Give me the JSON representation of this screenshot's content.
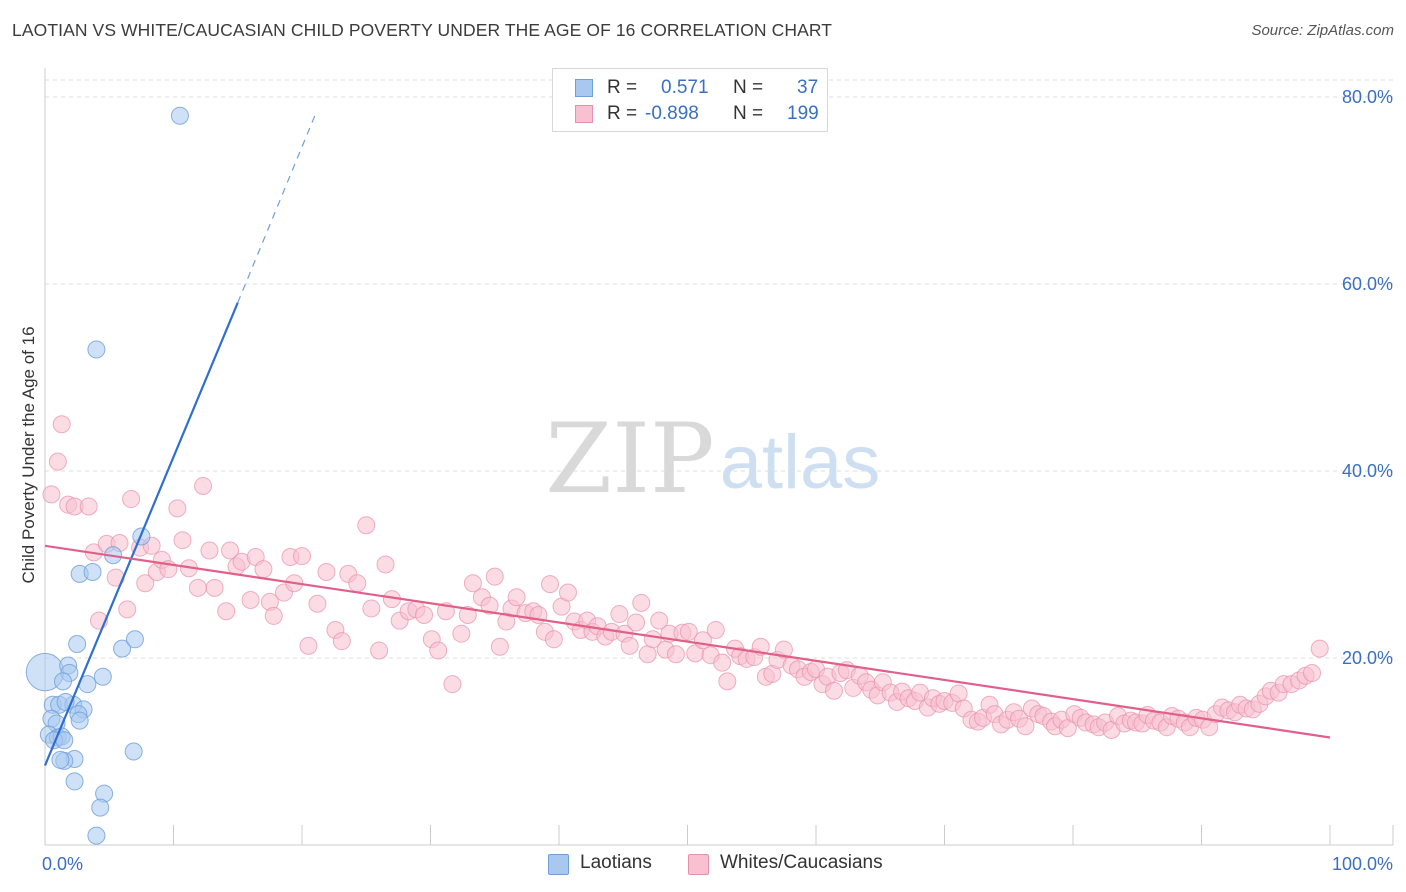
{
  "title": "LAOTIAN VS WHITE/CAUCASIAN CHILD POVERTY UNDER THE AGE OF 16 CORRELATION CHART",
  "source": "Source: ZipAtlas.com",
  "watermark": {
    "zip": "ZIP",
    "atlas": "atlas"
  },
  "legend": {
    "rows": [
      {
        "r_label": "R =",
        "r_value": "0.571",
        "n_label": "N =",
        "n_value": "37",
        "color": "#a8c8f0",
        "border": "#6f9fd8"
      },
      {
        "r_label": "R =",
        "r_value": "-0.898",
        "n_label": "N =",
        "n_value": "199",
        "color": "#f8c0d0",
        "border": "#e890aa"
      }
    ]
  },
  "bottom_legend": [
    {
      "label": "Laotians",
      "color": "#a8c8f0",
      "border": "#6f9fd8"
    },
    {
      "label": "Whites/Caucasians",
      "color": "#f8c0d0",
      "border": "#e890aa"
    }
  ],
  "chart_data": {
    "type": "scatter",
    "title": "LAOTIAN VS WHITE/CAUCASIAN CHILD POVERTY UNDER THE AGE OF 16 CORRELATION CHART",
    "xlabel": "",
    "ylabel": "Child Poverty Under the Age of 16",
    "xlim": [
      0,
      100
    ],
    "ylim": [
      0,
      80
    ],
    "x_tick_labels": [
      "0.0%",
      "100.0%"
    ],
    "y_tick_labels": [
      "20.0%",
      "40.0%",
      "60.0%",
      "80.0%"
    ],
    "y_ticks": [
      20,
      40,
      60,
      80
    ],
    "grid": "horizontal dashed",
    "series": [
      {
        "name": "Laotians",
        "color": "#6f9fd8",
        "fill": "#a8c8f0",
        "r": 0.571,
        "n": 37,
        "trend": {
          "x0": 0,
          "y0": 8.5,
          "x1": 15,
          "y1": 58,
          "dash_to_x": 21,
          "dash_to_y": 78
        },
        "points": [
          [
            0.0,
            18.5,
            2.2
          ],
          [
            10.5,
            78.0,
            1
          ],
          [
            4.0,
            53.0,
            1
          ],
          [
            7.5,
            33.0,
            1
          ],
          [
            2.7,
            29.0,
            1
          ],
          [
            3.7,
            29.2,
            1
          ],
          [
            5.3,
            31.0,
            1
          ],
          [
            2.5,
            21.5,
            1
          ],
          [
            6.0,
            21.0,
            1
          ],
          [
            7.0,
            22.0,
            1
          ],
          [
            1.8,
            19.2,
            1
          ],
          [
            1.9,
            18.4,
            1
          ],
          [
            1.4,
            17.5,
            1
          ],
          [
            3.3,
            17.2,
            1
          ],
          [
            4.5,
            18.0,
            1
          ],
          [
            0.6,
            15.0,
            1
          ],
          [
            1.1,
            15.0,
            1
          ],
          [
            2.2,
            15.0,
            1
          ],
          [
            1.6,
            15.3,
            1
          ],
          [
            3.0,
            14.5,
            1
          ],
          [
            2.6,
            14.0,
            1
          ],
          [
            0.5,
            13.5,
            1
          ],
          [
            2.7,
            13.3,
            1
          ],
          [
            0.9,
            13.0,
            1
          ],
          [
            0.3,
            11.8,
            1
          ],
          [
            1.0,
            11.5,
            1
          ],
          [
            1.3,
            11.6,
            1
          ],
          [
            0.7,
            11.2,
            1
          ],
          [
            1.5,
            11.2,
            1
          ],
          [
            2.3,
            9.2,
            1
          ],
          [
            1.5,
            9.0,
            1
          ],
          [
            6.9,
            10.0,
            1
          ],
          [
            2.3,
            6.8,
            1
          ],
          [
            4.6,
            5.5,
            1
          ],
          [
            4.3,
            4.0,
            1
          ],
          [
            4.0,
            1.0,
            1
          ],
          [
            1.2,
            9.1,
            1
          ]
        ]
      },
      {
        "name": "Whites/Caucasians",
        "color": "#e890aa",
        "fill": "#f8c0d0",
        "r": -0.898,
        "n": 199,
        "trend": {
          "x0": 0,
          "y0": 32.0,
          "x1": 100,
          "y1": 11.5
        },
        "points": [
          [
            0.5,
            37.5
          ],
          [
            1.0,
            41.0
          ],
          [
            1.3,
            45.0
          ],
          [
            1.8,
            36.4
          ],
          [
            2.3,
            36.2
          ],
          [
            3.4,
            36.2
          ],
          [
            3.8,
            31.3
          ],
          [
            4.2,
            24.0
          ],
          [
            4.8,
            32.2
          ],
          [
            5.5,
            28.6
          ],
          [
            5.8,
            32.3
          ],
          [
            6.4,
            25.2
          ],
          [
            6.7,
            37.0
          ],
          [
            7.4,
            31.8
          ],
          [
            7.8,
            28.0
          ],
          [
            8.3,
            32.0
          ],
          [
            8.7,
            29.2
          ],
          [
            9.1,
            30.5
          ],
          [
            9.6,
            29.5
          ],
          [
            10.3,
            36.0
          ],
          [
            10.7,
            32.6
          ],
          [
            11.2,
            29.6
          ],
          [
            11.9,
            27.5
          ],
          [
            12.3,
            38.4
          ],
          [
            12.8,
            31.5
          ],
          [
            13.2,
            27.5
          ],
          [
            14.1,
            25.0
          ],
          [
            14.4,
            31.5
          ],
          [
            14.9,
            29.8
          ],
          [
            15.3,
            30.3
          ],
          [
            16.0,
            26.2
          ],
          [
            16.4,
            30.8
          ],
          [
            17.0,
            29.5
          ],
          [
            17.5,
            26.0
          ],
          [
            17.8,
            24.5
          ],
          [
            18.6,
            27.0
          ],
          [
            19.1,
            30.8
          ],
          [
            19.4,
            28.0
          ],
          [
            20.0,
            30.9
          ],
          [
            20.5,
            21.3
          ],
          [
            21.2,
            25.8
          ],
          [
            21.9,
            29.2
          ],
          [
            22.6,
            23.0
          ],
          [
            23.1,
            21.8
          ],
          [
            23.6,
            29.0
          ],
          [
            24.3,
            28.0
          ],
          [
            25.0,
            34.2
          ],
          [
            25.4,
            25.3
          ],
          [
            26.0,
            20.8
          ],
          [
            26.5,
            30.0
          ],
          [
            27.0,
            26.3
          ],
          [
            27.6,
            24.0
          ],
          [
            28.3,
            25.0
          ],
          [
            28.9,
            25.2
          ],
          [
            29.5,
            24.6
          ],
          [
            30.1,
            22.0
          ],
          [
            30.6,
            20.8
          ],
          [
            31.2,
            25.0
          ],
          [
            31.7,
            17.2
          ],
          [
            32.4,
            22.6
          ],
          [
            32.9,
            24.6
          ],
          [
            33.3,
            28.0
          ],
          [
            34.0,
            26.5
          ],
          [
            34.6,
            25.6
          ],
          [
            35.0,
            28.7
          ],
          [
            35.4,
            21.2
          ],
          [
            35.9,
            23.9
          ],
          [
            36.3,
            25.3
          ],
          [
            36.7,
            26.5
          ],
          [
            37.4,
            24.8
          ],
          [
            38.0,
            25.0
          ],
          [
            38.4,
            24.6
          ],
          [
            38.9,
            22.8
          ],
          [
            39.3,
            27.9
          ],
          [
            39.6,
            22.0
          ],
          [
            40.2,
            25.5
          ],
          [
            40.7,
            27.0
          ],
          [
            41.2,
            23.9
          ],
          [
            41.7,
            23.0
          ],
          [
            42.2,
            24.0
          ],
          [
            42.6,
            22.8
          ],
          [
            43.0,
            23.4
          ],
          [
            43.6,
            22.3
          ],
          [
            44.1,
            22.8
          ],
          [
            44.7,
            24.7
          ],
          [
            45.1,
            22.6
          ],
          [
            45.5,
            21.3
          ],
          [
            46.0,
            23.8
          ],
          [
            46.4,
            25.9
          ],
          [
            46.9,
            20.4
          ],
          [
            47.3,
            22.0
          ],
          [
            47.8,
            24.0
          ],
          [
            48.3,
            20.9
          ],
          [
            48.6,
            22.6
          ],
          [
            49.1,
            20.4
          ],
          [
            49.6,
            22.7
          ],
          [
            50.1,
            22.8
          ],
          [
            50.6,
            20.5
          ],
          [
            51.2,
            21.9
          ],
          [
            51.8,
            20.3
          ],
          [
            52.2,
            23.0
          ],
          [
            52.7,
            19.5
          ],
          [
            53.1,
            17.5
          ],
          [
            53.7,
            21.0
          ],
          [
            54.1,
            20.2
          ],
          [
            54.6,
            19.9
          ],
          [
            55.2,
            20.1
          ],
          [
            55.7,
            21.2
          ],
          [
            56.1,
            18.0
          ],
          [
            56.6,
            18.3
          ],
          [
            57.0,
            19.8
          ],
          [
            57.5,
            20.9
          ],
          [
            58.1,
            19.2
          ],
          [
            58.6,
            18.8
          ],
          [
            59.1,
            18.0
          ],
          [
            59.6,
            18.5
          ],
          [
            60.0,
            18.8
          ],
          [
            60.5,
            17.2
          ],
          [
            60.9,
            18.0
          ],
          [
            61.4,
            16.5
          ],
          [
            61.9,
            18.4
          ],
          [
            62.4,
            18.7
          ],
          [
            62.9,
            16.8
          ],
          [
            63.4,
            18.1
          ],
          [
            63.9,
            17.4
          ],
          [
            64.3,
            16.6
          ],
          [
            64.8,
            16.0
          ],
          [
            65.2,
            17.4
          ],
          [
            65.8,
            16.3
          ],
          [
            66.3,
            15.3
          ],
          [
            66.7,
            16.4
          ],
          [
            67.2,
            15.7
          ],
          [
            67.7,
            15.4
          ],
          [
            68.1,
            16.3
          ],
          [
            68.7,
            14.7
          ],
          [
            69.1,
            15.7
          ],
          [
            69.6,
            15.1
          ],
          [
            70.0,
            15.4
          ],
          [
            70.6,
            15.2
          ],
          [
            71.1,
            16.2
          ],
          [
            71.5,
            14.6
          ],
          [
            72.1,
            13.4
          ],
          [
            72.6,
            13.2
          ],
          [
            73.0,
            13.6
          ],
          [
            73.5,
            15.0
          ],
          [
            73.9,
            14.0
          ],
          [
            74.4,
            12.9
          ],
          [
            74.9,
            13.4
          ],
          [
            75.4,
            14.2
          ],
          [
            75.8,
            13.5
          ],
          [
            76.3,
            12.7
          ],
          [
            76.8,
            14.6
          ],
          [
            77.3,
            14.0
          ],
          [
            77.7,
            13.8
          ],
          [
            78.3,
            13.2
          ],
          [
            78.6,
            12.7
          ],
          [
            79.1,
            13.4
          ],
          [
            79.6,
            12.5
          ],
          [
            80.1,
            14.0
          ],
          [
            80.6,
            13.6
          ],
          [
            81.0,
            13.1
          ],
          [
            81.6,
            12.9
          ],
          [
            82.0,
            12.6
          ],
          [
            82.5,
            13.1
          ],
          [
            83.0,
            12.3
          ],
          [
            83.5,
            13.8
          ],
          [
            84.0,
            13.0
          ],
          [
            84.5,
            13.3
          ],
          [
            84.9,
            13.1
          ],
          [
            85.4,
            13.0
          ],
          [
            85.8,
            13.9
          ],
          [
            86.3,
            13.3
          ],
          [
            86.8,
            13.1
          ],
          [
            87.3,
            12.6
          ],
          [
            87.7,
            13.8
          ],
          [
            88.2,
            13.5
          ],
          [
            88.7,
            13.1
          ],
          [
            89.1,
            12.6
          ],
          [
            89.6,
            13.6
          ],
          [
            90.1,
            13.4
          ],
          [
            90.6,
            12.6
          ],
          [
            91.1,
            14.0
          ],
          [
            91.6,
            14.7
          ],
          [
            92.1,
            14.4
          ],
          [
            92.6,
            14.2
          ],
          [
            93.0,
            15.0
          ],
          [
            93.5,
            14.6
          ],
          [
            94.0,
            14.5
          ],
          [
            94.5,
            15.1
          ],
          [
            95.0,
            15.9
          ],
          [
            95.4,
            16.5
          ],
          [
            96.0,
            16.3
          ],
          [
            96.4,
            17.2
          ],
          [
            97.0,
            17.2
          ],
          [
            97.6,
            17.6
          ],
          [
            98.1,
            18.1
          ],
          [
            98.6,
            18.4
          ],
          [
            99.2,
            21.0
          ]
        ]
      }
    ]
  }
}
